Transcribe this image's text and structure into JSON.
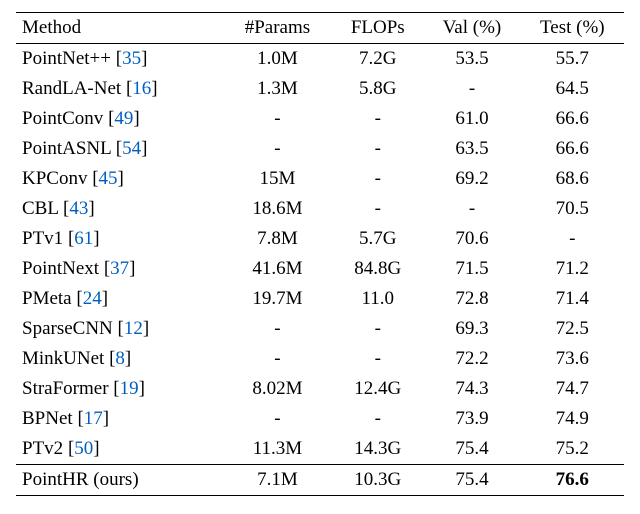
{
  "table": {
    "columns": [
      "Method",
      "#Params",
      "FLOPs",
      "Val (%)",
      "Test (%)"
    ],
    "col_widths": [
      "34%",
      "18%",
      "15%",
      "16%",
      "17%"
    ],
    "rows": [
      {
        "name": "PointNet++",
        "cite": "35",
        "params": "1.0M",
        "flops": "7.2G",
        "val": "53.5",
        "test": "55.7"
      },
      {
        "name": "RandLA-Net",
        "cite": "16",
        "params": "1.3M",
        "flops": "5.8G",
        "val": "-",
        "test": "64.5"
      },
      {
        "name": "PointConv",
        "cite": "49",
        "params": "-",
        "flops": "-",
        "val": "61.0",
        "test": "66.6"
      },
      {
        "name": "PointASNL",
        "cite": "54",
        "params": "-",
        "flops": "-",
        "val": "63.5",
        "test": "66.6"
      },
      {
        "name": "KPConv",
        "cite": "45",
        "params": "15M",
        "flops": "-",
        "val": "69.2",
        "test": "68.6"
      },
      {
        "name": "CBL",
        "cite": "43",
        "params": "18.6M",
        "flops": "-",
        "val": "-",
        "test": "70.5"
      },
      {
        "name": "PTv1",
        "cite": "61",
        "params": "7.8M",
        "flops": "5.7G",
        "val": "70.6",
        "test": "-"
      },
      {
        "name": "PointNext",
        "cite": "37",
        "params": "41.6M",
        "flops": "84.8G",
        "val": "71.5",
        "test": "71.2"
      },
      {
        "name": "PMeta",
        "cite": "24",
        "params": "19.7M",
        "flops": "11.0",
        "val": "72.8",
        "test": "71.4"
      },
      {
        "name": "SparseCNN",
        "cite": "12",
        "params": "-",
        "flops": "-",
        "val": "69.3",
        "test": "72.5"
      },
      {
        "name": "MinkUNet",
        "cite": "8",
        "params": "-",
        "flops": "-",
        "val": "72.2",
        "test": "73.6"
      },
      {
        "name": "StraFormer",
        "cite": "19",
        "params": "8.02M",
        "flops": "12.4G",
        "val": "74.3",
        "test": "74.7"
      },
      {
        "name": "BPNet",
        "cite": "17",
        "params": "-",
        "flops": "-",
        "val": "73.9",
        "test": "74.9"
      },
      {
        "name": "PTv2",
        "cite": "50",
        "params": "11.3M",
        "flops": "14.3G",
        "val": "75.4",
        "test": "75.2"
      }
    ],
    "ours": {
      "name": "PointHR (ours)",
      "params": "7.1M",
      "flops": "10.3G",
      "val": "75.4",
      "test": "76.6",
      "test_bold": true
    },
    "cite_color": "#0060c0",
    "text_color": "#000000",
    "background_color": "#ffffff",
    "font_family": "Times New Roman",
    "font_size_pt": 14
  }
}
